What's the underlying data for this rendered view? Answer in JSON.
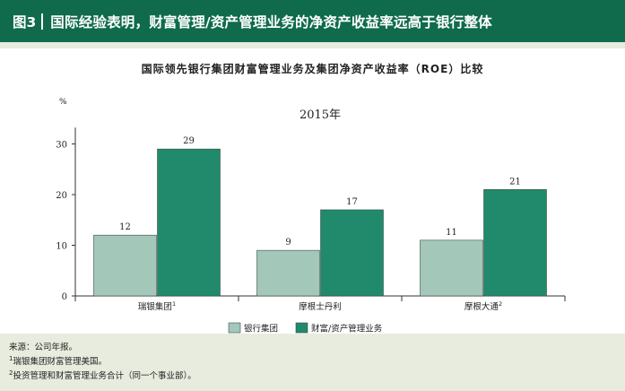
{
  "figure": {
    "number": "图3",
    "title": "国际经验表明，财富管理/资产管理业务的净资产收益率远高于银行整体"
  },
  "colors": {
    "header_bg": "#0f6b4c",
    "background": "#e7ecdf",
    "bank": "#a3c7b8",
    "wealth": "#218a6c"
  },
  "chart_data": {
    "type": "bar",
    "title": "国际领先银行集团财富管理业务及集团净资产收益率（ROE）比较",
    "subtitle": "2015年",
    "ylabel": "%",
    "ylim": [
      0,
      35
    ],
    "yticks": [
      0,
      10,
      20,
      30
    ],
    "categories": [
      "瑞银集团",
      "摩根士丹利",
      "摩根大通"
    ],
    "category_sup": [
      "1",
      "",
      "2"
    ],
    "series": [
      {
        "name": "银行集团",
        "values": [
          12,
          9,
          11
        ]
      },
      {
        "name": "财富/资产管理业务",
        "values": [
          29,
          17,
          21
        ]
      }
    ],
    "legend_position": "bottom"
  },
  "notes": {
    "source": "来源：公司年报。",
    "note1_mark": "1",
    "note1": "瑞银集团财富管理美国。",
    "note2_mark": "2",
    "note2": "投资管理和财富管理业务合计（同一个事业部）。"
  }
}
